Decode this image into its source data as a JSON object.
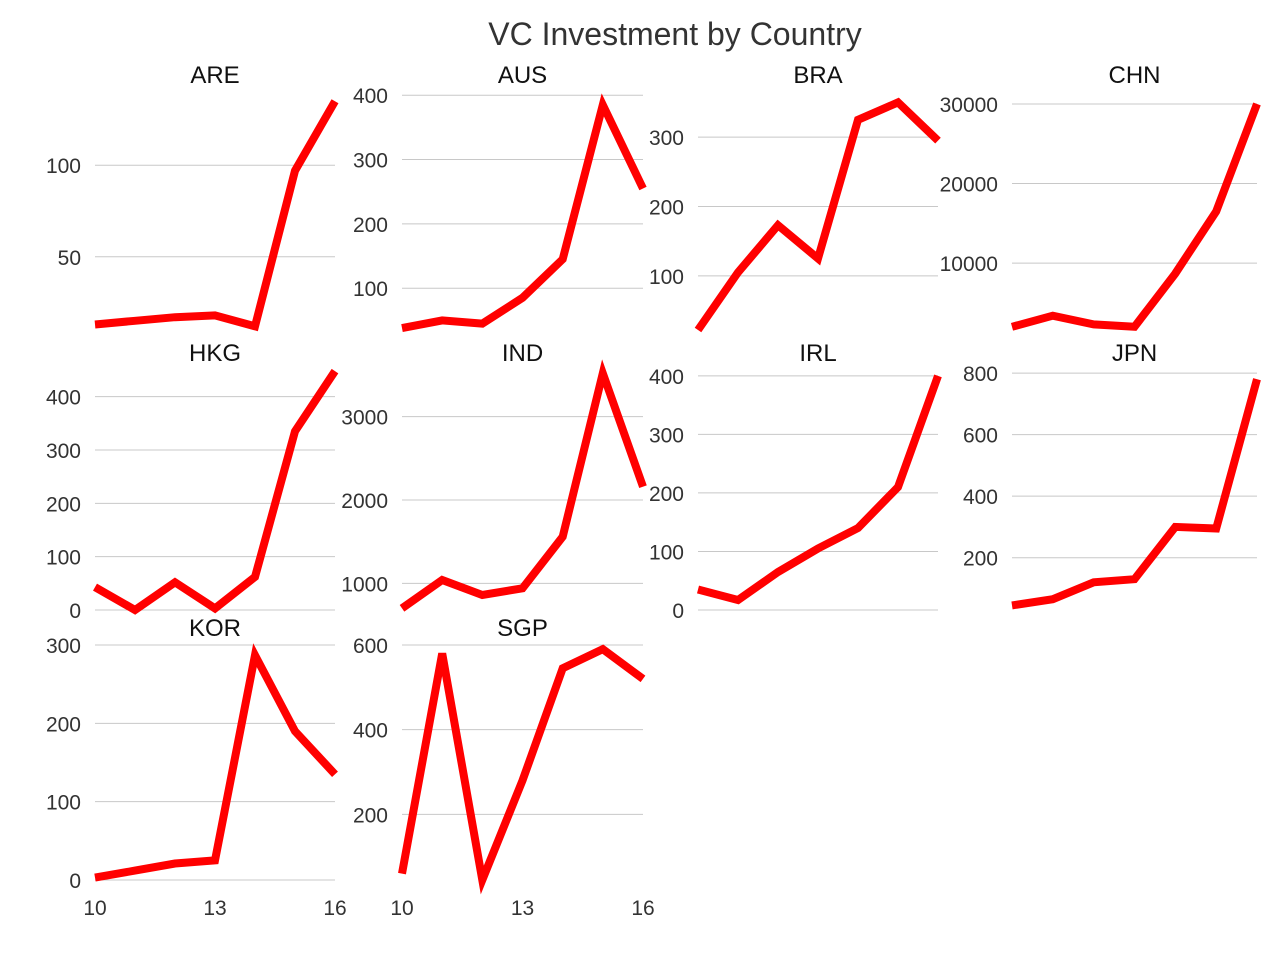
{
  "chart_data": {
    "type": "line",
    "title": "VC Investment by Country",
    "line_color": "#ff0000",
    "grid_color": "#c8c8c8",
    "text_color": "#333333",
    "x_ticks": [
      10,
      13,
      16
    ],
    "panels": [
      {
        "name": "ARE",
        "x": [
          10,
          11,
          12,
          13,
          14,
          15,
          16
        ],
        "y": [
          13,
          15,
          17,
          18,
          12,
          97,
          135
        ],
        "ylim": [
          10,
          140
        ],
        "yticks": [
          50,
          100
        ],
        "show_x_ticks": false
      },
      {
        "name": "AUS",
        "x": [
          10,
          11,
          12,
          13,
          14,
          15,
          16
        ],
        "y": [
          38,
          50,
          45,
          85,
          145,
          385,
          255
        ],
        "ylim": [
          35,
          405
        ],
        "yticks": [
          100,
          200,
          300,
          400
        ],
        "show_x_ticks": false
      },
      {
        "name": "BRA",
        "x": [
          10,
          11,
          12,
          13,
          14,
          15,
          16
        ],
        "y": [
          22,
          105,
          173,
          125,
          325,
          350,
          295
        ],
        "ylim": [
          22,
          365
        ],
        "yticks": [
          100,
          200,
          300
        ],
        "show_x_ticks": false
      },
      {
        "name": "CHN",
        "x": [
          10,
          11,
          12,
          13,
          14,
          15,
          16
        ],
        "y": [
          2000,
          3400,
          2300,
          2000,
          8700,
          16500,
          30000
        ],
        "ylim": [
          1600,
          31500
        ],
        "yticks": [
          10000,
          20000,
          30000
        ],
        "show_x_ticks": false
      },
      {
        "name": "HKG",
        "x": [
          10,
          11,
          12,
          13,
          14,
          15,
          16
        ],
        "y": [
          43,
          0,
          52,
          3,
          62,
          335,
          448
        ],
        "ylim": [
          0,
          450
        ],
        "yticks": [
          0,
          100,
          200,
          300,
          400
        ],
        "show_x_ticks": false
      },
      {
        "name": "IND",
        "x": [
          10,
          11,
          12,
          13,
          14,
          15,
          16
        ],
        "y": [
          700,
          1040,
          860,
          940,
          1560,
          3520,
          2160
        ],
        "ylim": [
          680,
          3560
        ],
        "yticks": [
          1000,
          2000,
          3000
        ],
        "show_x_ticks": false
      },
      {
        "name": "IRL",
        "x": [
          10,
          11,
          12,
          13,
          14,
          15,
          16
        ],
        "y": [
          35,
          17,
          65,
          105,
          140,
          210,
          400
        ],
        "ylim": [
          0,
          410
        ],
        "yticks": [
          0,
          100,
          200,
          300,
          400
        ],
        "show_x_ticks": false
      },
      {
        "name": "JPN",
        "x": [
          10,
          11,
          12,
          13,
          14,
          15,
          16
        ],
        "y": [
          45,
          65,
          120,
          130,
          300,
          295,
          780
        ],
        "ylim": [
          30,
          810
        ],
        "yticks": [
          200,
          400,
          600,
          800
        ],
        "show_x_ticks": false
      },
      {
        "name": "KOR",
        "x": [
          10,
          11,
          12,
          13,
          14,
          15,
          16
        ],
        "y": [
          3,
          12,
          21,
          25,
          287,
          190,
          135
        ],
        "ylim": [
          0,
          300
        ],
        "yticks": [
          0,
          100,
          200,
          300
        ],
        "show_x_ticks": true
      },
      {
        "name": "SGP",
        "x": [
          10,
          11,
          12,
          13,
          14,
          15,
          16
        ],
        "y": [
          60,
          580,
          45,
          280,
          545,
          590,
          520
        ],
        "ylim": [
          45,
          600
        ],
        "yticks": [
          200,
          400,
          600
        ],
        "show_x_ticks": true
      }
    ]
  }
}
